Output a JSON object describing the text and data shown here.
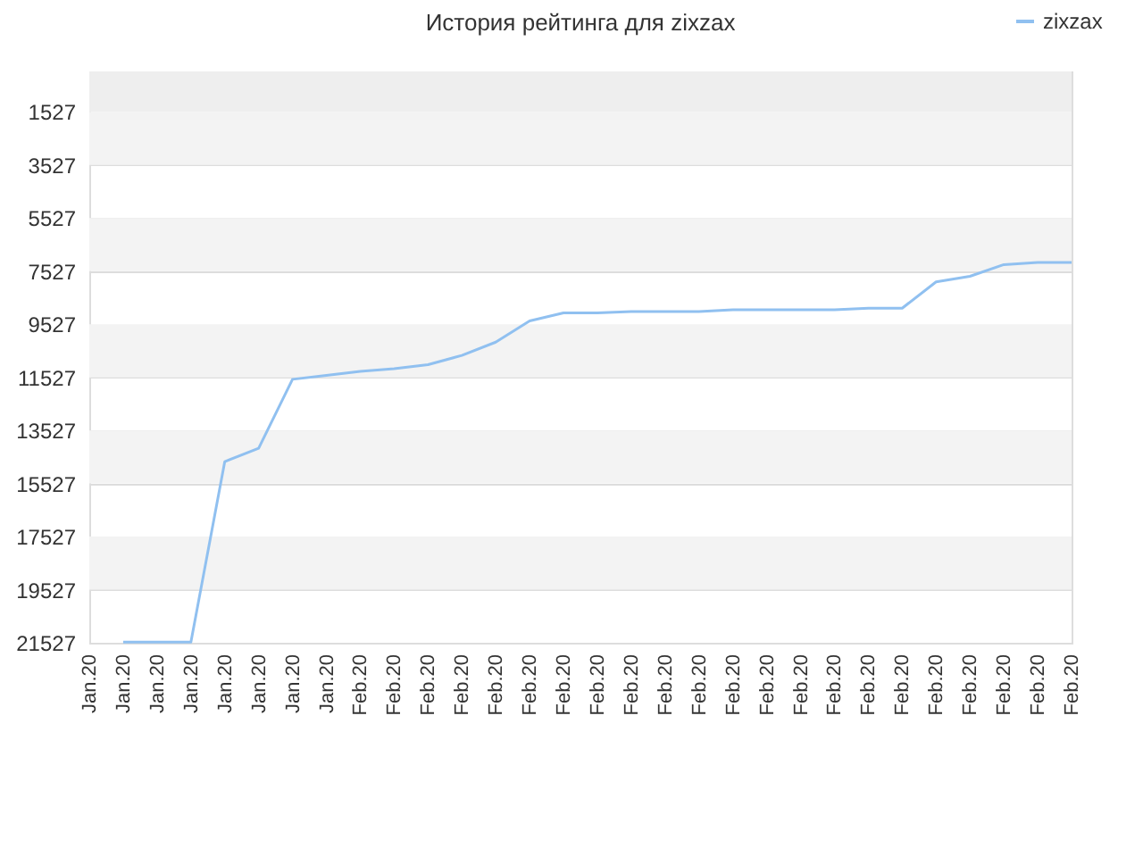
{
  "chart_data": {
    "type": "line",
    "title": "История рейтинга для zixzax",
    "categories": [
      "Jan.20",
      "Jan.20",
      "Jan.20",
      "Jan.20",
      "Jan.20",
      "Jan.20",
      "Jan.20",
      "Jan.20",
      "Feb.20",
      "Feb.20",
      "Feb.20",
      "Feb.20",
      "Feb.20",
      "Feb.20",
      "Feb.20",
      "Feb.20",
      "Feb.20",
      "Feb.20",
      "Feb.20",
      "Feb.20",
      "Feb.20",
      "Feb.20",
      "Feb.20",
      "Feb.20",
      "Feb.20",
      "Feb.20",
      "Feb.20",
      "Feb.20",
      "Feb.20",
      "Feb.20"
    ],
    "series": [
      {
        "name": "zixzax",
        "color": "#90c0f0",
        "values": [
          null,
          21500,
          21500,
          21500,
          14700,
          14200,
          11600,
          11450,
          11300,
          11200,
          11050,
          10700,
          10200,
          9400,
          9100,
          9100,
          9050,
          9050,
          9050,
          8980,
          8980,
          8980,
          8980,
          8920,
          8920,
          7930,
          7720,
          7280,
          7200,
          7200
        ]
      }
    ],
    "ylim": [
      21527,
      0
    ],
    "yticks": [
      1527,
      3527,
      5527,
      7527,
      9527,
      11527,
      13527,
      15527,
      17527,
      19527,
      21527
    ],
    "bands": [
      {
        "axis": "y",
        "from": 0,
        "to": 1527,
        "color": "#eeeeee"
      },
      {
        "axis": "y",
        "from": 1527,
        "to": 3527,
        "color": "#f3f3f3"
      },
      {
        "axis": "y",
        "from": 5527,
        "to": 7527,
        "color": "#f3f3f3"
      },
      {
        "axis": "y",
        "from": 9527,
        "to": 11527,
        "color": "#f3f3f3"
      },
      {
        "axis": "y",
        "from": 13527,
        "to": 15527,
        "color": "#f3f3f3"
      },
      {
        "axis": "y",
        "from": 17527,
        "to": 19527,
        "color": "#f3f3f3"
      }
    ],
    "grid": "y",
    "legend": "top right",
    "line_style": "solid",
    "marker": "none"
  }
}
